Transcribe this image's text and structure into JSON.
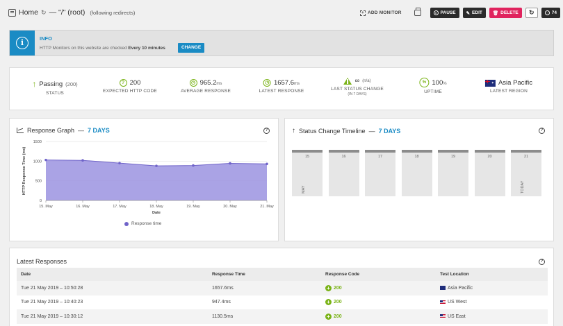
{
  "header": {
    "title": "Home",
    "path": "— \"/\" (root)",
    "subtitle": "(following redirects)",
    "add_monitor": "ADD MONITOR",
    "pause": "PAUSE",
    "edit": "EDIT",
    "delete": "DELETE",
    "days_count": "74"
  },
  "info": {
    "title": "INFO",
    "text_prefix": "HTTP Monitors on this website are checked",
    "text_bold": "Every 10 minutes",
    "change_label": "CHANGE"
  },
  "stats": [
    {
      "value": "Passing",
      "unit": "(200)",
      "label": "STATUS",
      "icon": "arrow-up-icon"
    },
    {
      "value": "200",
      "unit": "",
      "label": "EXPECTED HTTP CODE",
      "icon": "question-circle-icon"
    },
    {
      "value": "965.2",
      "unit": "ms",
      "label": "AVERAGE RESPONSE",
      "icon": "clock-icon"
    },
    {
      "value": "1657.6",
      "unit": "ms",
      "label": "LATEST RESPONSE",
      "icon": "clock-icon"
    },
    {
      "value": "∞",
      "unit": "(n/a)",
      "label": "LAST STATUS CHANGE",
      "sublabel": "(IN 7 DAYS)",
      "icon": "warning-icon"
    },
    {
      "value": "100",
      "unit": "%",
      "label": "UPTIME",
      "icon": "percent-icon"
    },
    {
      "value": "Asia Pacific",
      "unit": "",
      "label": "LATEST REGION",
      "icon": "australia-flag-icon"
    }
  ],
  "graph": {
    "title": "Response Graph",
    "range": "7 DAYS",
    "legend": "Response time"
  },
  "chart_data": {
    "type": "area",
    "title": "Response Graph",
    "xlabel": "Date",
    "ylabel": "HTTP Response Time (ms)",
    "categories": [
      "15. May",
      "16. May",
      "17. May",
      "18. May",
      "19. May",
      "20. May",
      "21. May"
    ],
    "series": [
      {
        "name": "Response time",
        "values": [
          1030,
          1020,
          950,
          880,
          890,
          945,
          930
        ]
      }
    ],
    "ylim": [
      0,
      1500
    ],
    "yticks": [
      0,
      500,
      1000,
      1500
    ],
    "color": "#9b93e0",
    "line_color": "#6f63c9",
    "grid": true,
    "legend_position": "bottom"
  },
  "timeline": {
    "title": "Status Change Timeline",
    "range": "7 DAYS",
    "days": [
      "15",
      "16",
      "17",
      "18",
      "19",
      "20",
      "21"
    ],
    "first_label": "MAY",
    "last_label": "TODAY"
  },
  "latest": {
    "title": "Latest Responses",
    "columns": [
      "Date",
      "Response Time",
      "Response Code",
      "Test Location"
    ],
    "rows": [
      {
        "date": "Tue 21 May 2019 – 10:50:28",
        "time": "1657.6ms",
        "code": "200",
        "location": "Asia Pacific",
        "flag": "au"
      },
      {
        "date": "Tue 21 May 2019 – 10:40:23",
        "time": "947.4ms",
        "code": "200",
        "location": "US West",
        "flag": "us"
      },
      {
        "date": "Tue 21 May 2019 – 10:30:12",
        "time": "1130.5ms",
        "code": "200",
        "location": "US East",
        "flag": "us"
      }
    ]
  }
}
